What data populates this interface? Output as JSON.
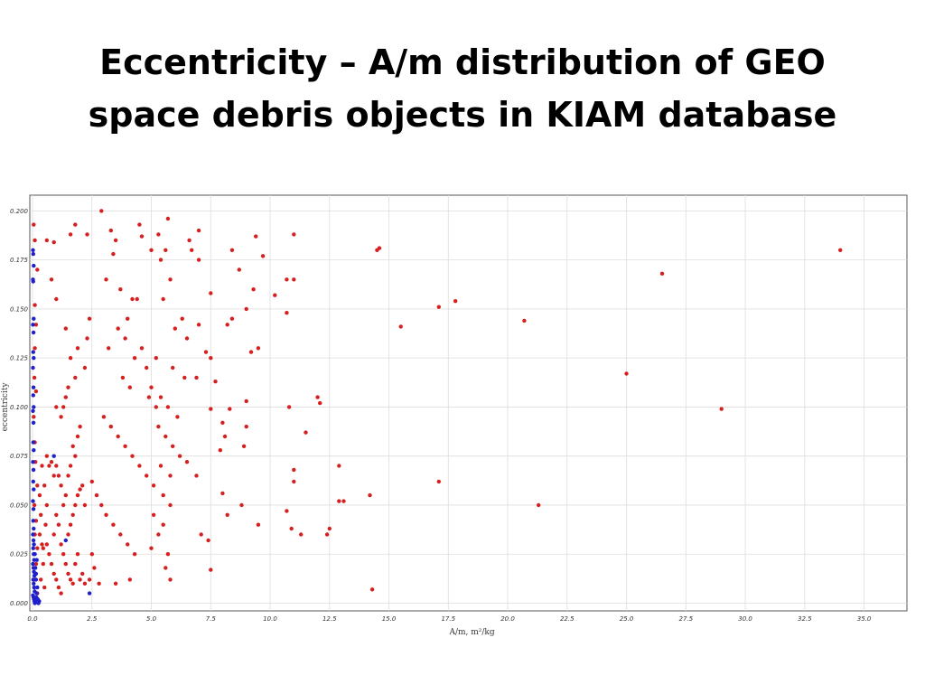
{
  "title": {
    "line1": "Eccentricity – A/m distribution of GEO",
    "line2": "space debris objects in KIAM database"
  },
  "chart_data": {
    "type": "scatter",
    "xlabel": "A/m, m²/kg",
    "ylabel": "eccentricity",
    "xlim": [
      0,
      36.5
    ],
    "ylim": [
      -0.003,
      0.208
    ],
    "xticks": [
      "0.0",
      "2.5",
      "5.0",
      "7.5",
      "10.0",
      "12.5",
      "15.0",
      "17.5",
      "20.0",
      "22.5",
      "25.0",
      "27.5",
      "30.0",
      "32.5",
      "35.0"
    ],
    "yticks": [
      "0.000",
      "0.025",
      "0.050",
      "0.075",
      "0.100",
      "0.125",
      "0.150",
      "0.175",
      "0.200"
    ],
    "grid": true,
    "colors": {
      "red": "#d62020",
      "blue": "#1f1fcc"
    },
    "series": [
      {
        "color": "#d62020",
        "points": [
          [
            0.05,
            0.193
          ],
          [
            0.1,
            0.185
          ],
          [
            0.2,
            0.17
          ],
          [
            0.1,
            0.152
          ],
          [
            0.15,
            0.142
          ],
          [
            0.1,
            0.13
          ],
          [
            0.08,
            0.115
          ],
          [
            0.15,
            0.108
          ],
          [
            0.05,
            0.095
          ],
          [
            0.1,
            0.082
          ],
          [
            0.12,
            0.072
          ],
          [
            0.2,
            0.06
          ],
          [
            0.08,
            0.05
          ],
          [
            0.15,
            0.042
          ],
          [
            0.1,
            0.035
          ],
          [
            0.2,
            0.028
          ],
          [
            0.15,
            0.02
          ],
          [
            0.1,
            0.012
          ],
          [
            0.2,
            0.005
          ],
          [
            0.1,
            0.002
          ],
          [
            0.3,
            0.055
          ],
          [
            0.35,
            0.045
          ],
          [
            0.4,
            0.03
          ],
          [
            0.45,
            0.02
          ],
          [
            0.35,
            0.012
          ],
          [
            0.5,
            0.008
          ],
          [
            0.3,
            0.035
          ],
          [
            0.45,
            0.028
          ],
          [
            0.5,
            0.06
          ],
          [
            0.6,
            0.05
          ],
          [
            0.55,
            0.04
          ],
          [
            0.4,
            0.07
          ],
          [
            0.6,
            0.075
          ],
          [
            0.7,
            0.07
          ],
          [
            0.8,
            0.072
          ],
          [
            0.9,
            0.065
          ],
          [
            0.6,
            0.03
          ],
          [
            0.7,
            0.025
          ],
          [
            0.8,
            0.02
          ],
          [
            0.9,
            0.015
          ],
          [
            1.0,
            0.012
          ],
          [
            1.1,
            0.008
          ],
          [
            1.2,
            0.005
          ],
          [
            0.9,
            0.035
          ],
          [
            1.0,
            0.045
          ],
          [
            1.1,
            0.04
          ],
          [
            1.2,
            0.03
          ],
          [
            1.3,
            0.025
          ],
          [
            1.4,
            0.02
          ],
          [
            1.5,
            0.015
          ],
          [
            1.6,
            0.012
          ],
          [
            1.7,
            0.01
          ],
          [
            1.8,
            0.02
          ],
          [
            1.9,
            0.025
          ],
          [
            2.0,
            0.012
          ],
          [
            2.1,
            0.015
          ],
          [
            2.2,
            0.01
          ],
          [
            1.5,
            0.035
          ],
          [
            1.6,
            0.04
          ],
          [
            1.7,
            0.045
          ],
          [
            1.8,
            0.05
          ],
          [
            1.9,
            0.055
          ],
          [
            2.0,
            0.058
          ],
          [
            2.1,
            0.06
          ],
          [
            2.2,
            0.05
          ],
          [
            1.3,
            0.05
          ],
          [
            1.4,
            0.055
          ],
          [
            1.2,
            0.06
          ],
          [
            1.1,
            0.065
          ],
          [
            1.0,
            0.07
          ],
          [
            1.5,
            0.065
          ],
          [
            1.6,
            0.07
          ],
          [
            1.8,
            0.075
          ],
          [
            1.7,
            0.08
          ],
          [
            1.9,
            0.085
          ],
          [
            2.0,
            0.09
          ],
          [
            1.2,
            0.095
          ],
          [
            1.3,
            0.1
          ],
          [
            1.4,
            0.105
          ],
          [
            1.0,
            0.1
          ],
          [
            1.5,
            0.11
          ],
          [
            1.8,
            0.115
          ],
          [
            2.2,
            0.12
          ],
          [
            1.6,
            0.125
          ],
          [
            1.9,
            0.13
          ],
          [
            2.3,
            0.135
          ],
          [
            1.4,
            0.14
          ],
          [
            2.4,
            0.145
          ],
          [
            1.0,
            0.155
          ],
          [
            0.8,
            0.165
          ],
          [
            0.6,
            0.185
          ],
          [
            0.9,
            0.184
          ],
          [
            1.6,
            0.188
          ],
          [
            1.8,
            0.193
          ],
          [
            2.3,
            0.188
          ],
          [
            2.9,
            0.2
          ],
          [
            3.3,
            0.19
          ],
          [
            3.5,
            0.185
          ],
          [
            3.4,
            0.178
          ],
          [
            3.1,
            0.165
          ],
          [
            3.7,
            0.16
          ],
          [
            4.2,
            0.155
          ],
          [
            4.0,
            0.145
          ],
          [
            3.6,
            0.14
          ],
          [
            3.9,
            0.135
          ],
          [
            3.2,
            0.13
          ],
          [
            4.3,
            0.125
          ],
          [
            4.6,
            0.13
          ],
          [
            4.8,
            0.12
          ],
          [
            3.8,
            0.115
          ],
          [
            4.1,
            0.11
          ],
          [
            4.9,
            0.105
          ],
          [
            5.2,
            0.1
          ],
          [
            3.0,
            0.095
          ],
          [
            3.3,
            0.09
          ],
          [
            3.6,
            0.085
          ],
          [
            3.9,
            0.08
          ],
          [
            4.2,
            0.075
          ],
          [
            4.5,
            0.07
          ],
          [
            4.8,
            0.065
          ],
          [
            5.1,
            0.06
          ],
          [
            2.5,
            0.062
          ],
          [
            2.7,
            0.055
          ],
          [
            2.9,
            0.05
          ],
          [
            3.1,
            0.045
          ],
          [
            3.4,
            0.04
          ],
          [
            3.7,
            0.035
          ],
          [
            4.0,
            0.03
          ],
          [
            4.3,
            0.025
          ],
          [
            2.5,
            0.025
          ],
          [
            2.6,
            0.018
          ],
          [
            2.4,
            0.012
          ],
          [
            2.8,
            0.01
          ],
          [
            3.5,
            0.01
          ],
          [
            4.1,
            0.012
          ],
          [
            4.4,
            0.155
          ],
          [
            4.5,
            0.193
          ],
          [
            4.6,
            0.187
          ],
          [
            5.0,
            0.18
          ],
          [
            5.3,
            0.188
          ],
          [
            5.6,
            0.18
          ],
          [
            5.7,
            0.196
          ],
          [
            5.4,
            0.175
          ],
          [
            5.8,
            0.165
          ],
          [
            5.5,
            0.155
          ],
          [
            6.0,
            0.14
          ],
          [
            6.3,
            0.145
          ],
          [
            6.5,
            0.135
          ],
          [
            5.2,
            0.125
          ],
          [
            5.9,
            0.12
          ],
          [
            6.4,
            0.115
          ],
          [
            6.9,
            0.115
          ],
          [
            5.0,
            0.11
          ],
          [
            5.4,
            0.105
          ],
          [
            5.7,
            0.1
          ],
          [
            6.1,
            0.095
          ],
          [
            5.3,
            0.09
          ],
          [
            5.6,
            0.085
          ],
          [
            5.9,
            0.08
          ],
          [
            6.2,
            0.075
          ],
          [
            5.4,
            0.07
          ],
          [
            5.8,
            0.065
          ],
          [
            6.5,
            0.072
          ],
          [
            6.9,
            0.065
          ],
          [
            5.5,
            0.055
          ],
          [
            5.8,
            0.05
          ],
          [
            5.1,
            0.045
          ],
          [
            5.5,
            0.04
          ],
          [
            5.3,
            0.035
          ],
          [
            5.0,
            0.028
          ],
          [
            5.7,
            0.025
          ],
          [
            5.6,
            0.018
          ],
          [
            5.8,
            0.012
          ],
          [
            7.1,
            0.035
          ],
          [
            7.4,
            0.032
          ],
          [
            7.5,
            0.017
          ],
          [
            6.7,
            0.18
          ],
          [
            7.0,
            0.19
          ],
          [
            6.6,
            0.185
          ],
          [
            7.0,
            0.175
          ],
          [
            7.5,
            0.158
          ],
          [
            7.0,
            0.142
          ],
          [
            7.3,
            0.128
          ],
          [
            7.5,
            0.125
          ],
          [
            7.7,
            0.113
          ],
          [
            7.5,
            0.099
          ],
          [
            8.0,
            0.092
          ],
          [
            8.1,
            0.085
          ],
          [
            7.9,
            0.078
          ],
          [
            8.0,
            0.056
          ],
          [
            8.2,
            0.045
          ],
          [
            8.3,
            0.099
          ],
          [
            8.4,
            0.145
          ],
          [
            8.2,
            0.142
          ],
          [
            8.4,
            0.18
          ],
          [
            8.7,
            0.17
          ],
          [
            9.0,
            0.15
          ],
          [
            9.2,
            0.128
          ],
          [
            9.5,
            0.13
          ],
          [
            9.4,
            0.187
          ],
          [
            9.7,
            0.177
          ],
          [
            9.3,
            0.16
          ],
          [
            9.0,
            0.103
          ],
          [
            9.0,
            0.09
          ],
          [
            8.9,
            0.08
          ],
          [
            8.8,
            0.05
          ],
          [
            9.5,
            0.04
          ],
          [
            10.2,
            0.157
          ],
          [
            10.7,
            0.148
          ],
          [
            10.7,
            0.165
          ],
          [
            11.0,
            0.188
          ],
          [
            11.0,
            0.165
          ],
          [
            10.8,
            0.1
          ],
          [
            11.0,
            0.068
          ],
          [
            11.0,
            0.062
          ],
          [
            10.7,
            0.047
          ],
          [
            10.9,
            0.038
          ],
          [
            11.3,
            0.035
          ],
          [
            11.5,
            0.087
          ],
          [
            12.0,
            0.105
          ],
          [
            12.1,
            0.102
          ],
          [
            12.4,
            0.035
          ],
          [
            12.5,
            0.038
          ],
          [
            12.9,
            0.07
          ],
          [
            12.9,
            0.052
          ],
          [
            13.1,
            0.052
          ],
          [
            14.2,
            0.055
          ],
          [
            14.3,
            0.007
          ],
          [
            14.5,
            0.18
          ],
          [
            14.6,
            0.181
          ],
          [
            15.5,
            0.141
          ],
          [
            17.1,
            0.151
          ],
          [
            17.1,
            0.062
          ],
          [
            17.8,
            0.154
          ],
          [
            20.7,
            0.144
          ],
          [
            21.3,
            0.05
          ],
          [
            25.0,
            0.117
          ],
          [
            26.5,
            0.168
          ],
          [
            29.0,
            0.099
          ],
          [
            34.0,
            0.18
          ]
        ]
      },
      {
        "color": "#1f1fcc",
        "points": [
          [
            0.02,
            0.18
          ],
          [
            0.03,
            0.178
          ],
          [
            0.05,
            0.172
          ],
          [
            0.02,
            0.165
          ],
          [
            0.03,
            0.164
          ],
          [
            0.05,
            0.145
          ],
          [
            0.02,
            0.142
          ],
          [
            0.04,
            0.138
          ],
          [
            0.03,
            0.128
          ],
          [
            0.05,
            0.125
          ],
          [
            0.02,
            0.12
          ],
          [
            0.04,
            0.11
          ],
          [
            0.03,
            0.106
          ],
          [
            0.05,
            0.1
          ],
          [
            0.02,
            0.098
          ],
          [
            0.04,
            0.092
          ],
          [
            0.03,
            0.082
          ],
          [
            0.05,
            0.078
          ],
          [
            0.02,
            0.072
          ],
          [
            0.04,
            0.068
          ],
          [
            0.03,
            0.062
          ],
          [
            0.05,
            0.058
          ],
          [
            0.02,
            0.052
          ],
          [
            0.04,
            0.048
          ],
          [
            0.03,
            0.042
          ],
          [
            0.05,
            0.038
          ],
          [
            0.02,
            0.035
          ],
          [
            0.04,
            0.032
          ],
          [
            0.06,
            0.03
          ],
          [
            0.03,
            0.028
          ],
          [
            0.05,
            0.025
          ],
          [
            0.07,
            0.022
          ],
          [
            0.02,
            0.02
          ],
          [
            0.04,
            0.018
          ],
          [
            0.06,
            0.016
          ],
          [
            0.08,
            0.014
          ],
          [
            0.03,
            0.012
          ],
          [
            0.05,
            0.01
          ],
          [
            0.07,
            0.008
          ],
          [
            0.09,
            0.006
          ],
          [
            0.02,
            0.004
          ],
          [
            0.04,
            0.003
          ],
          [
            0.06,
            0.002
          ],
          [
            0.08,
            0.001
          ],
          [
            0.1,
            0.0
          ],
          [
            0.12,
            0.001
          ],
          [
            0.14,
            0.002
          ],
          [
            0.16,
            0.003
          ],
          [
            0.18,
            0.005
          ],
          [
            0.2,
            0.008
          ],
          [
            0.15,
            0.012
          ],
          [
            0.12,
            0.018
          ],
          [
            0.18,
            0.022
          ],
          [
            0.22,
            0.002
          ],
          [
            0.25,
            0.0
          ],
          [
            0.28,
            0.001
          ],
          [
            0.1,
            0.025
          ],
          [
            0.15,
            0.015
          ],
          [
            0.9,
            0.075
          ],
          [
            1.4,
            0.032
          ],
          [
            2.4,
            0.005
          ]
        ]
      }
    ]
  }
}
